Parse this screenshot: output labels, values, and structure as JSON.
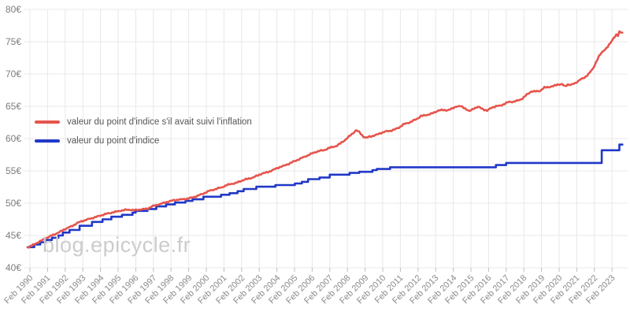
{
  "chart": {
    "watermark": "blog.epicycle.fr",
    "background": "#ffffff",
    "grid_color": "#e8e8e8",
    "tick_color": "#bbbbbb",
    "axis_text_color": "#8a8a8a"
  },
  "chart_data": {
    "type": "line",
    "title": "",
    "xlabel": "",
    "ylabel": "",
    "grid": true,
    "legend_position": "left-middle",
    "y_axis": {
      "min": 40,
      "max": 80,
      "step": 5,
      "unit": "€",
      "tick_labels": [
        "40€",
        "45€",
        "50€",
        "55€",
        "60€",
        "65€",
        "70€",
        "75€",
        "80€"
      ]
    },
    "x_axis": {
      "range_years": [
        1989.95,
        2023.67
      ],
      "tick_labels": [
        "Feb 1990",
        "Feb 1991",
        "Feb 1992",
        "Feb 1993",
        "Feb 1994",
        "Feb 1995",
        "Feb 1996",
        "Feb 1997",
        "Feb 1998",
        "Feb 1999",
        "Feb 2000",
        "Feb 2001",
        "Feb 2002",
        "Feb 2003",
        "Feb 2004",
        "Feb 2005",
        "Feb 2006",
        "Feb 2007",
        "Feb 2008",
        "Feb 2009",
        "Feb 2010",
        "Feb 2011",
        "Feb 2012",
        "Feb 2013",
        "Feb 2014",
        "Feb 2015",
        "Feb 2016",
        "Feb 2017",
        "Feb 2018",
        "Feb 2019",
        "Feb 2020",
        "Feb 2021",
        "Feb 2022",
        "Feb 2023"
      ]
    },
    "series": [
      {
        "name": "valeur du point d'indice s'il avait suivi l'inflation",
        "color": "#e6544c",
        "style": "line",
        "points": [
          [
            1989.95,
            43.05
          ],
          [
            1990.25,
            43.5
          ],
          [
            1990.5,
            43.9
          ],
          [
            1990.75,
            44.2
          ],
          [
            1991.0,
            44.6
          ],
          [
            1991.25,
            44.9
          ],
          [
            1991.5,
            45.2
          ],
          [
            1991.75,
            45.5
          ],
          [
            1992.0,
            45.9
          ],
          [
            1992.25,
            46.2
          ],
          [
            1992.5,
            46.5
          ],
          [
            1992.75,
            46.9
          ],
          [
            1993.0,
            47.2
          ],
          [
            1993.25,
            47.4
          ],
          [
            1993.5,
            47.6
          ],
          [
            1993.75,
            47.8
          ],
          [
            1994.0,
            48.0
          ],
          [
            1994.33,
            48.3
          ],
          [
            1994.67,
            48.5
          ],
          [
            1995.0,
            48.7
          ],
          [
            1995.33,
            48.9
          ],
          [
            1995.67,
            49.0
          ],
          [
            1996.0,
            48.9
          ],
          [
            1996.25,
            49.0
          ],
          [
            1996.5,
            49.05
          ],
          [
            1996.75,
            49.15
          ],
          [
            1997.0,
            49.5
          ],
          [
            1997.25,
            49.7
          ],
          [
            1997.5,
            49.9
          ],
          [
            1997.75,
            50.1
          ],
          [
            1998.0,
            50.3
          ],
          [
            1998.25,
            50.45
          ],
          [
            1998.5,
            50.55
          ],
          [
            1998.75,
            50.6
          ],
          [
            1999.0,
            50.7
          ],
          [
            1999.25,
            50.85
          ],
          [
            1999.5,
            51.05
          ],
          [
            1999.75,
            51.3
          ],
          [
            2000.0,
            51.6
          ],
          [
            2000.25,
            51.9
          ],
          [
            2000.5,
            52.1
          ],
          [
            2000.75,
            52.3
          ],
          [
            2001.0,
            52.5
          ],
          [
            2001.25,
            52.8
          ],
          [
            2001.5,
            53.0
          ],
          [
            2001.75,
            53.1
          ],
          [
            2002.0,
            53.4
          ],
          [
            2002.25,
            53.65
          ],
          [
            2002.5,
            53.8
          ],
          [
            2002.75,
            54.0
          ],
          [
            2003.0,
            54.3
          ],
          [
            2003.25,
            54.6
          ],
          [
            2003.5,
            54.75
          ],
          [
            2003.75,
            55.0
          ],
          [
            2004.0,
            55.3
          ],
          [
            2004.25,
            55.6
          ],
          [
            2004.5,
            55.8
          ],
          [
            2004.75,
            56.1
          ],
          [
            2005.0,
            56.4
          ],
          [
            2005.25,
            56.7
          ],
          [
            2005.5,
            57.0
          ],
          [
            2005.75,
            57.3
          ],
          [
            2006.0,
            57.6
          ],
          [
            2006.25,
            57.9
          ],
          [
            2006.5,
            58.1
          ],
          [
            2006.75,
            58.2
          ],
          [
            2007.0,
            58.5
          ],
          [
            2007.25,
            58.7
          ],
          [
            2007.5,
            58.9
          ],
          [
            2007.75,
            59.4
          ],
          [
            2008.0,
            59.9
          ],
          [
            2008.25,
            60.5
          ],
          [
            2008.5,
            61.1
          ],
          [
            2008.58,
            61.3
          ],
          [
            2008.75,
            61.0
          ],
          [
            2009.0,
            60.3
          ],
          [
            2009.17,
            60.1
          ],
          [
            2009.33,
            60.3
          ],
          [
            2009.5,
            60.4
          ],
          [
            2009.75,
            60.6
          ],
          [
            2010.0,
            60.9
          ],
          [
            2010.25,
            61.1
          ],
          [
            2010.5,
            61.2
          ],
          [
            2010.75,
            61.4
          ],
          [
            2011.0,
            61.7
          ],
          [
            2011.25,
            62.2
          ],
          [
            2011.5,
            62.4
          ],
          [
            2011.75,
            62.7
          ],
          [
            2012.0,
            63.0
          ],
          [
            2012.25,
            63.5
          ],
          [
            2012.5,
            63.6
          ],
          [
            2012.75,
            63.8
          ],
          [
            2013.0,
            64.0
          ],
          [
            2013.25,
            64.4
          ],
          [
            2013.5,
            64.4
          ],
          [
            2013.75,
            64.4
          ],
          [
            2014.0,
            64.6
          ],
          [
            2014.25,
            65.0
          ],
          [
            2014.5,
            65.0
          ],
          [
            2014.75,
            64.7
          ],
          [
            2015.0,
            64.2
          ],
          [
            2015.25,
            64.7
          ],
          [
            2015.5,
            64.9
          ],
          [
            2015.75,
            64.6
          ],
          [
            2016.0,
            64.3
          ],
          [
            2016.25,
            64.8
          ],
          [
            2016.5,
            65.0
          ],
          [
            2016.75,
            65.1
          ],
          [
            2017.0,
            65.4
          ],
          [
            2017.25,
            65.7
          ],
          [
            2017.5,
            65.7
          ],
          [
            2017.75,
            65.9
          ],
          [
            2018.0,
            66.2
          ],
          [
            2018.25,
            66.8
          ],
          [
            2018.5,
            67.3
          ],
          [
            2018.75,
            67.3
          ],
          [
            2019.0,
            67.4
          ],
          [
            2019.25,
            67.9
          ],
          [
            2019.5,
            68.0
          ],
          [
            2019.75,
            68.1
          ],
          [
            2020.0,
            68.4
          ],
          [
            2020.25,
            68.4
          ],
          [
            2020.42,
            68.1
          ],
          [
            2020.58,
            68.4
          ],
          [
            2020.75,
            68.3
          ],
          [
            2021.0,
            68.6
          ],
          [
            2021.25,
            69.1
          ],
          [
            2021.5,
            69.4
          ],
          [
            2021.75,
            70.0
          ],
          [
            2022.0,
            70.8
          ],
          [
            2022.17,
            71.8
          ],
          [
            2022.33,
            72.7
          ],
          [
            2022.5,
            73.3
          ],
          [
            2022.67,
            73.8
          ],
          [
            2022.83,
            74.2
          ],
          [
            2023.0,
            74.8
          ],
          [
            2023.17,
            75.6
          ],
          [
            2023.33,
            76.1
          ],
          [
            2023.42,
            75.9
          ],
          [
            2023.5,
            76.5
          ],
          [
            2023.67,
            76.4
          ]
        ]
      },
      {
        "name": "valeur du point d'indice",
        "color": "#2038c8",
        "style": "step",
        "points": [
          [
            1989.95,
            43.2
          ],
          [
            1990.33,
            43.6
          ],
          [
            1990.67,
            43.95
          ],
          [
            1990.95,
            44.3
          ],
          [
            1991.33,
            44.65
          ],
          [
            1991.7,
            45.0
          ],
          [
            1991.95,
            45.45
          ],
          [
            1992.33,
            45.85
          ],
          [
            1992.9,
            46.5
          ],
          [
            1993.6,
            47.1
          ],
          [
            1994.2,
            47.5
          ],
          [
            1994.7,
            47.9
          ],
          [
            1995.3,
            48.2
          ],
          [
            1995.9,
            48.55
          ],
          [
            1996.08,
            48.8
          ],
          [
            1996.75,
            49.1
          ],
          [
            1997.25,
            49.5
          ],
          [
            1997.8,
            49.8
          ],
          [
            1998.3,
            50.1
          ],
          [
            1998.9,
            50.35
          ],
          [
            1999.3,
            50.6
          ],
          [
            1999.92,
            51.0
          ],
          [
            2000.92,
            51.3
          ],
          [
            2001.4,
            51.55
          ],
          [
            2001.85,
            51.85
          ],
          [
            2002.2,
            52.2
          ],
          [
            2002.92,
            52.55
          ],
          [
            2004.0,
            52.8
          ],
          [
            2005.1,
            53.05
          ],
          [
            2005.5,
            53.3
          ],
          [
            2005.85,
            53.72
          ],
          [
            2006.5,
            53.98
          ],
          [
            2007.08,
            54.41
          ],
          [
            2008.2,
            54.68
          ],
          [
            2008.75,
            54.85
          ],
          [
            2009.5,
            55.12
          ],
          [
            2009.75,
            55.29
          ],
          [
            2010.5,
            55.56
          ],
          [
            2016.5,
            55.9
          ],
          [
            2017.08,
            56.23
          ],
          [
            2022.5,
            58.2
          ],
          [
            2023.5,
            59.07
          ],
          [
            2023.67,
            59.07
          ]
        ]
      }
    ]
  }
}
